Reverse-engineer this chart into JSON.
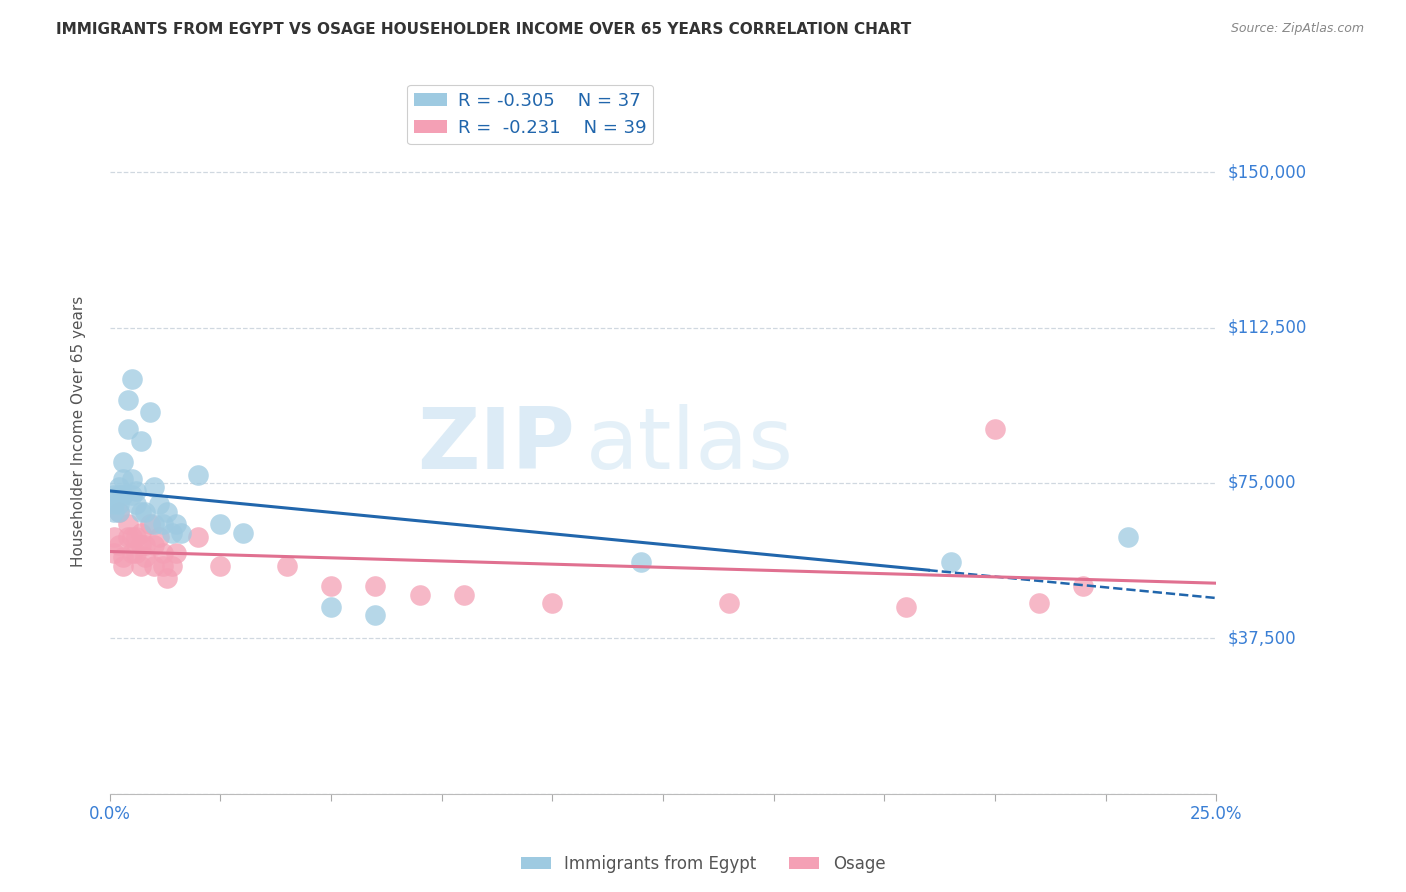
{
  "title": "IMMIGRANTS FROM EGYPT VS OSAGE HOUSEHOLDER INCOME OVER 65 YEARS CORRELATION CHART",
  "source": "Source: ZipAtlas.com",
  "ylabel": "Householder Income Over 65 years",
  "legend_label1": "Immigrants from Egypt",
  "legend_label2": "Osage",
  "r1": "-0.305",
  "n1": "37",
  "r2": "-0.231",
  "n2": "39",
  "xlim": [
    0.0,
    0.25
  ],
  "ylim": [
    0,
    175000
  ],
  "yticks": [
    0,
    37500,
    75000,
    112500,
    150000
  ],
  "ytick_labels": [
    "",
    "$37,500",
    "$75,000",
    "$112,500",
    "$150,000"
  ],
  "xtick_positions": [
    0.0,
    0.25
  ],
  "xtick_labels": [
    "0.0%",
    "25.0%"
  ],
  "color_blue": "#9ecae1",
  "color_pink": "#f4a0b5",
  "line_color_blue": "#2166ac",
  "line_color_pink": "#e07090",
  "watermark_zip": "ZIP",
  "watermark_atlas": "atlas",
  "background_color": "#ffffff",
  "grid_color": "#d0d8e0",
  "blue_scatter_x": [
    0.001,
    0.001,
    0.001,
    0.002,
    0.002,
    0.002,
    0.002,
    0.003,
    0.003,
    0.003,
    0.004,
    0.004,
    0.005,
    0.005,
    0.005,
    0.006,
    0.006,
    0.007,
    0.007,
    0.008,
    0.009,
    0.01,
    0.01,
    0.011,
    0.012,
    0.013,
    0.014,
    0.015,
    0.016,
    0.02,
    0.025,
    0.03,
    0.05,
    0.06,
    0.12,
    0.19,
    0.23
  ],
  "blue_scatter_y": [
    70000,
    72000,
    68000,
    74000,
    72000,
    70000,
    68000,
    80000,
    76000,
    72000,
    95000,
    88000,
    100000,
    76000,
    72000,
    73000,
    70000,
    85000,
    68000,
    68000,
    92000,
    74000,
    65000,
    70000,
    65000,
    68000,
    63000,
    65000,
    63000,
    77000,
    65000,
    63000,
    45000,
    43000,
    56000,
    56000,
    62000
  ],
  "pink_scatter_x": [
    0.001,
    0.001,
    0.002,
    0.002,
    0.003,
    0.003,
    0.004,
    0.004,
    0.005,
    0.005,
    0.006,
    0.006,
    0.007,
    0.007,
    0.007,
    0.008,
    0.008,
    0.009,
    0.01,
    0.01,
    0.011,
    0.012,
    0.012,
    0.013,
    0.014,
    0.015,
    0.02,
    0.025,
    0.04,
    0.05,
    0.06,
    0.07,
    0.08,
    0.1,
    0.14,
    0.18,
    0.2,
    0.21,
    0.22
  ],
  "pink_scatter_y": [
    62000,
    58000,
    68000,
    60000,
    57000,
    55000,
    65000,
    62000,
    62000,
    58000,
    62000,
    58000,
    63000,
    60000,
    55000,
    60000,
    57000,
    65000,
    60000,
    55000,
    62000,
    58000,
    55000,
    52000,
    55000,
    58000,
    62000,
    55000,
    55000,
    50000,
    50000,
    48000,
    48000,
    46000,
    46000,
    45000,
    88000,
    46000,
    50000
  ],
  "blue_line_x_solid_start": 0.0,
  "blue_line_x_solid_end": 0.185,
  "blue_line_x_dash_start": 0.185,
  "blue_line_x_dash_end": 0.25
}
